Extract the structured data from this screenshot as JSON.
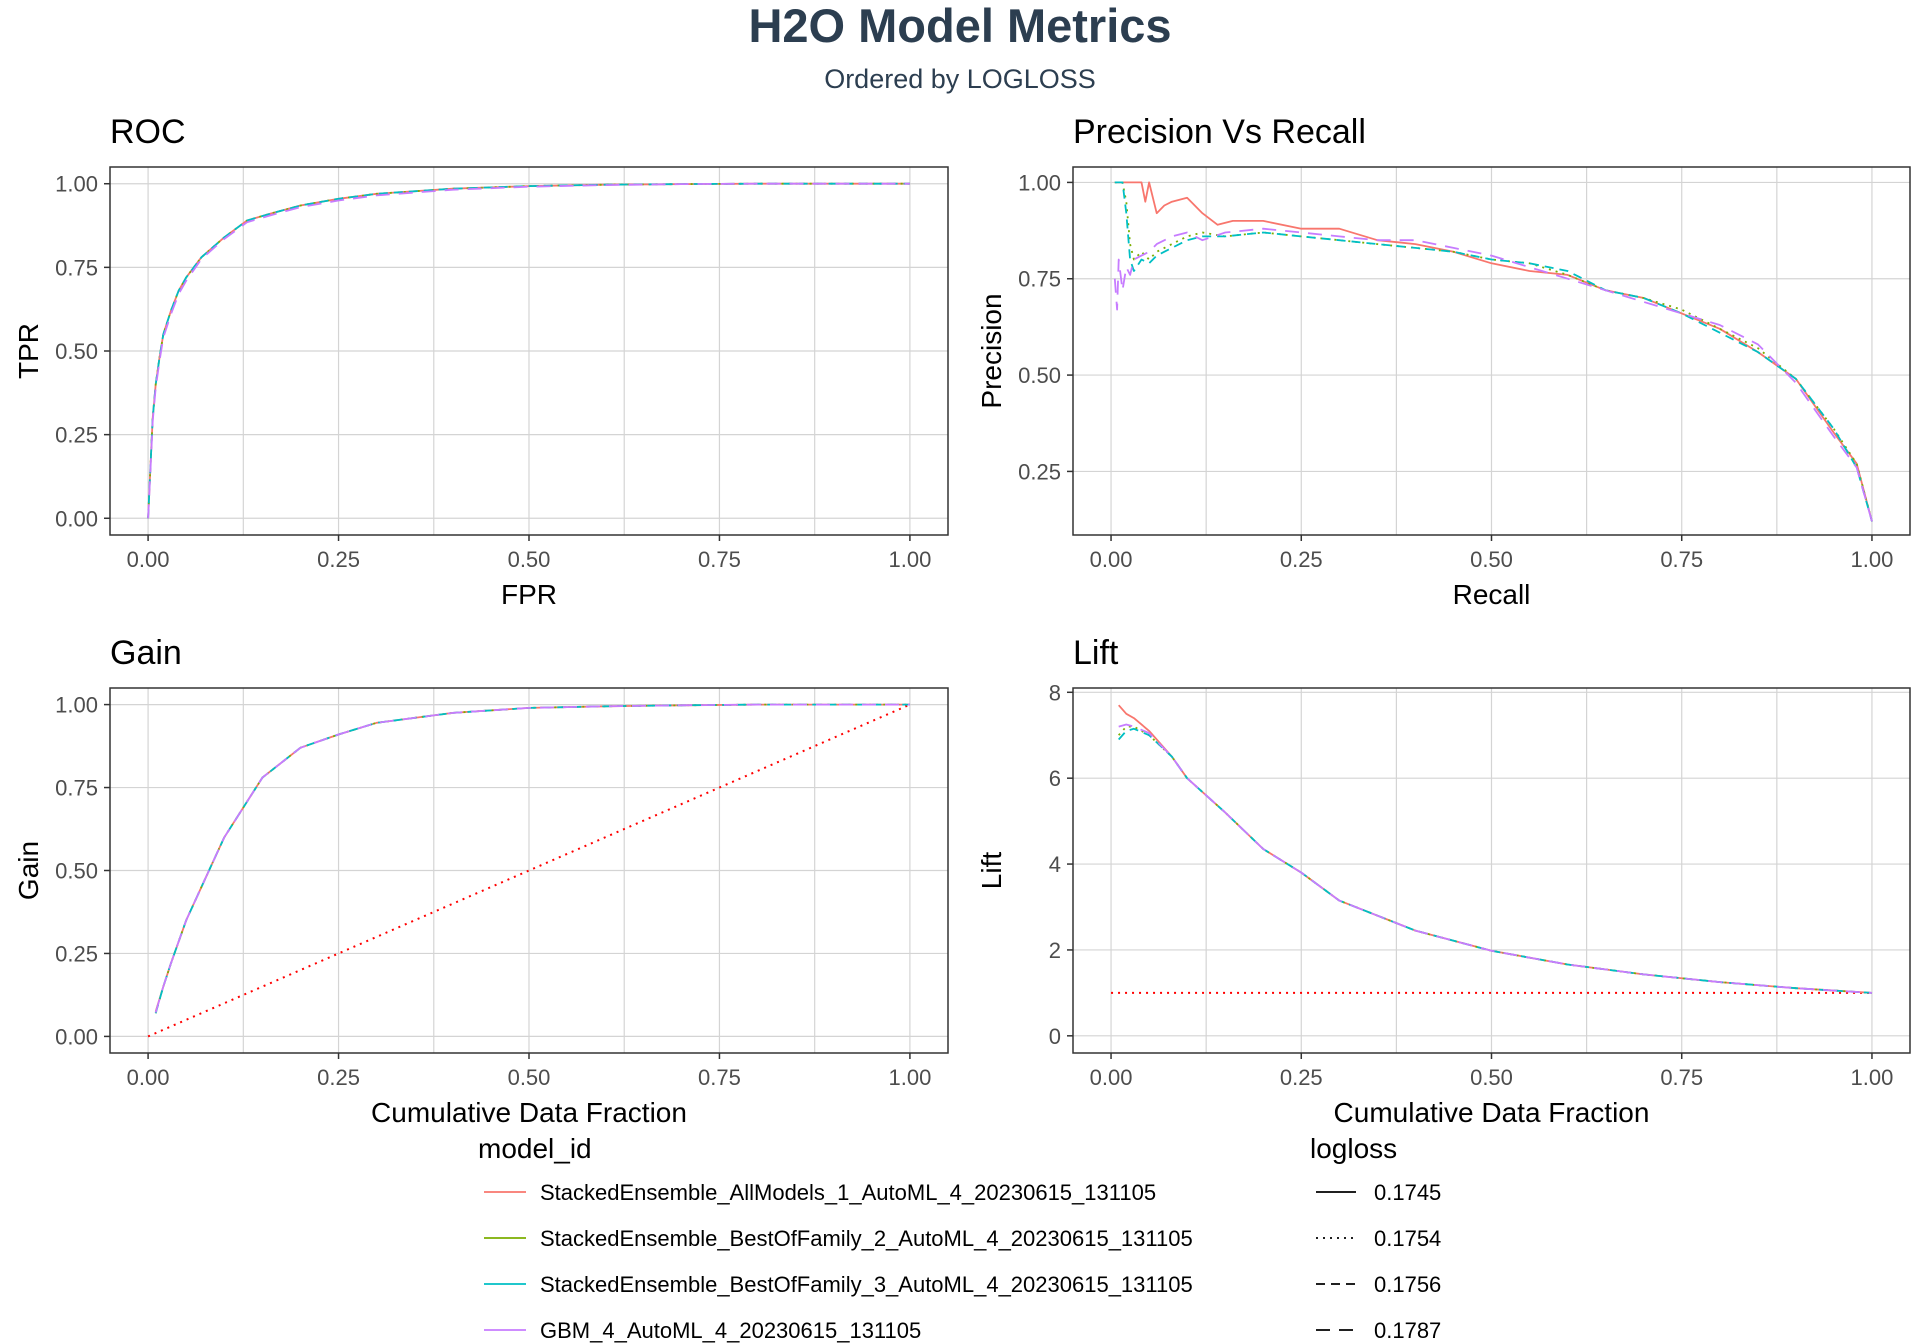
{
  "header": {
    "title": "H2O Model Metrics",
    "subtitle": "Ordered by LOGLOSS"
  },
  "colors": {
    "series": [
      "#F8766D",
      "#7CAE00",
      "#00BFC4",
      "#C77CFF"
    ],
    "reference": "#FF0000",
    "title": "#2c3e50"
  },
  "legend": {
    "model_id_title": "model_id",
    "logloss_title": "logloss",
    "models": [
      "StackedEnsemble_AllModels_1_AutoML_4_20230615_131105",
      "StackedEnsemble_BestOfFamily_2_AutoML_4_20230615_131105",
      "StackedEnsemble_BestOfFamily_3_AutoML_4_20230615_131105",
      "GBM_4_AutoML_4_20230615_131105"
    ],
    "logloss_values": [
      "0.1745",
      "0.1754",
      "0.1756",
      "0.1787"
    ],
    "linetypes": [
      "solid",
      "dotted",
      "dashed",
      "longdash"
    ]
  },
  "chart_data": [
    {
      "id": "roc",
      "type": "line",
      "title": "ROC",
      "xlabel": "FPR",
      "ylabel": "TPR",
      "xlim": [
        -0.05,
        1.05
      ],
      "ylim": [
        -0.05,
        1.05
      ],
      "xticks": [
        "0.00",
        "0.25",
        "0.50",
        "0.75",
        "1.00"
      ],
      "yticks": [
        "0.00",
        "0.25",
        "0.50",
        "0.75",
        "1.00"
      ],
      "grid": true,
      "series": [
        {
          "name": "StackedEnsemble_AllModels_1_AutoML_4_20230615_131105",
          "x": [
            0,
            0.003,
            0.006,
            0.01,
            0.015,
            0.02,
            0.03,
            0.04,
            0.05,
            0.07,
            0.1,
            0.13,
            0.16,
            0.2,
            0.25,
            0.3,
            0.4,
            0.5,
            0.6,
            0.7,
            0.8,
            1.0
          ],
          "y": [
            0,
            0.15,
            0.3,
            0.4,
            0.48,
            0.55,
            0.62,
            0.68,
            0.72,
            0.78,
            0.84,
            0.89,
            0.91,
            0.935,
            0.955,
            0.97,
            0.985,
            0.993,
            0.997,
            0.999,
            1.0,
            1.0
          ]
        },
        {
          "name": "StackedEnsemble_BestOfFamily_2_AutoML_4_20230615_131105",
          "x": [
            0,
            0.003,
            0.006,
            0.01,
            0.015,
            0.02,
            0.03,
            0.04,
            0.05,
            0.07,
            0.1,
            0.13,
            0.16,
            0.2,
            0.25,
            0.3,
            0.4,
            0.5,
            0.6,
            0.7,
            0.8,
            1.0
          ],
          "y": [
            0,
            0.15,
            0.3,
            0.4,
            0.48,
            0.55,
            0.62,
            0.68,
            0.72,
            0.78,
            0.84,
            0.89,
            0.91,
            0.935,
            0.955,
            0.97,
            0.985,
            0.993,
            0.997,
            0.999,
            1.0,
            1.0
          ]
        },
        {
          "name": "StackedEnsemble_BestOfFamily_3_AutoML_4_20230615_131105",
          "x": [
            0,
            0.003,
            0.006,
            0.01,
            0.015,
            0.02,
            0.03,
            0.04,
            0.05,
            0.07,
            0.1,
            0.13,
            0.16,
            0.2,
            0.25,
            0.3,
            0.4,
            0.5,
            0.6,
            0.7,
            0.8,
            1.0
          ],
          "y": [
            0,
            0.15,
            0.3,
            0.4,
            0.48,
            0.55,
            0.62,
            0.68,
            0.72,
            0.78,
            0.84,
            0.89,
            0.91,
            0.935,
            0.955,
            0.97,
            0.985,
            0.993,
            0.997,
            0.999,
            1.0,
            1.0
          ]
        },
        {
          "name": "GBM_4_AutoML_4_20230615_131105",
          "x": [
            0,
            0.003,
            0.006,
            0.01,
            0.015,
            0.02,
            0.03,
            0.04,
            0.05,
            0.07,
            0.1,
            0.13,
            0.16,
            0.2,
            0.25,
            0.3,
            0.4,
            0.5,
            0.6,
            0.7,
            0.8,
            1.0
          ],
          "y": [
            0,
            0.14,
            0.29,
            0.39,
            0.47,
            0.54,
            0.61,
            0.67,
            0.71,
            0.775,
            0.835,
            0.885,
            0.905,
            0.93,
            0.95,
            0.965,
            0.982,
            0.991,
            0.996,
            0.999,
            1.0,
            1.0
          ]
        }
      ]
    },
    {
      "id": "pr",
      "type": "line",
      "title": "Precision Vs Recall",
      "xlabel": "Recall",
      "ylabel": "Precision",
      "xlim": [
        -0.05,
        1.05
      ],
      "ylim": [
        0.085,
        1.04
      ],
      "xticks": [
        "0.00",
        "0.25",
        "0.50",
        "0.75",
        "1.00"
      ],
      "yticks": [
        "0.25",
        "0.50",
        "0.75",
        "1.00"
      ],
      "yticks_values": [
        0.25,
        0.5,
        0.75,
        1.0
      ],
      "grid": true,
      "series": [
        {
          "name": "StackedEnsemble_AllModels_1_AutoML_4_20230615_131105",
          "x": [
            0.005,
            0.01,
            0.02,
            0.03,
            0.04,
            0.045,
            0.05,
            0.06,
            0.07,
            0.08,
            0.1,
            0.12,
            0.14,
            0.16,
            0.2,
            0.25,
            0.3,
            0.35,
            0.4,
            0.45,
            0.5,
            0.55,
            0.6,
            0.65,
            0.7,
            0.75,
            0.8,
            0.85,
            0.9,
            0.95,
            0.98,
            1.0
          ],
          "y": [
            1.0,
            1.0,
            1.0,
            1.0,
            1.0,
            0.95,
            1.0,
            0.92,
            0.94,
            0.95,
            0.96,
            0.92,
            0.89,
            0.9,
            0.9,
            0.88,
            0.88,
            0.85,
            0.84,
            0.82,
            0.79,
            0.77,
            0.76,
            0.72,
            0.7,
            0.66,
            0.62,
            0.56,
            0.49,
            0.35,
            0.27,
            0.12
          ]
        },
        {
          "name": "StackedEnsemble_BestOfFamily_2_AutoML_4_20230615_131105",
          "x": [
            0.005,
            0.01,
            0.015,
            0.02,
            0.025,
            0.03,
            0.04,
            0.05,
            0.06,
            0.08,
            0.1,
            0.12,
            0.15,
            0.2,
            0.25,
            0.3,
            0.35,
            0.4,
            0.45,
            0.5,
            0.55,
            0.6,
            0.65,
            0.7,
            0.75,
            0.8,
            0.85,
            0.9,
            0.95,
            0.98,
            1.0
          ],
          "y": [
            1.0,
            1.0,
            1.0,
            0.95,
            0.84,
            0.8,
            0.82,
            0.8,
            0.82,
            0.84,
            0.86,
            0.87,
            0.86,
            0.87,
            0.86,
            0.85,
            0.84,
            0.83,
            0.82,
            0.8,
            0.79,
            0.76,
            0.72,
            0.7,
            0.67,
            0.62,
            0.57,
            0.49,
            0.36,
            0.27,
            0.12
          ]
        },
        {
          "name": "StackedEnsemble_BestOfFamily_3_AutoML_4_20230615_131105",
          "x": [
            0.005,
            0.01,
            0.015,
            0.02,
            0.025,
            0.03,
            0.04,
            0.05,
            0.06,
            0.08,
            0.1,
            0.12,
            0.15,
            0.2,
            0.25,
            0.3,
            0.35,
            0.4,
            0.45,
            0.5,
            0.55,
            0.6,
            0.65,
            0.7,
            0.75,
            0.8,
            0.85,
            0.9,
            0.95,
            0.98,
            1.0
          ],
          "y": [
            1.0,
            1.0,
            1.0,
            0.92,
            0.8,
            0.77,
            0.8,
            0.79,
            0.81,
            0.83,
            0.85,
            0.86,
            0.86,
            0.87,
            0.86,
            0.85,
            0.84,
            0.83,
            0.82,
            0.8,
            0.79,
            0.77,
            0.72,
            0.7,
            0.66,
            0.61,
            0.56,
            0.49,
            0.36,
            0.26,
            0.12
          ]
        },
        {
          "name": "GBM_4_AutoML_4_20230615_131105",
          "x": [
            0.005,
            0.008,
            0.01,
            0.015,
            0.02,
            0.025,
            0.03,
            0.04,
            0.05,
            0.06,
            0.08,
            0.1,
            0.12,
            0.15,
            0.2,
            0.25,
            0.3,
            0.35,
            0.4,
            0.45,
            0.5,
            0.55,
            0.6,
            0.65,
            0.7,
            0.75,
            0.8,
            0.85,
            0.9,
            0.95,
            0.98,
            1.0
          ],
          "y": [
            0.75,
            0.67,
            0.8,
            0.72,
            0.78,
            0.76,
            0.8,
            0.81,
            0.82,
            0.84,
            0.86,
            0.87,
            0.85,
            0.87,
            0.88,
            0.87,
            0.86,
            0.85,
            0.85,
            0.83,
            0.81,
            0.78,
            0.75,
            0.72,
            0.69,
            0.66,
            0.63,
            0.58,
            0.48,
            0.34,
            0.26,
            0.12
          ]
        }
      ]
    },
    {
      "id": "gain",
      "type": "line",
      "title": "Gain",
      "xlabel": "Cumulative Data Fraction",
      "ylabel": "Gain",
      "xlim": [
        -0.05,
        1.05
      ],
      "ylim": [
        -0.05,
        1.05
      ],
      "xticks": [
        "0.00",
        "0.25",
        "0.50",
        "0.75",
        "1.00"
      ],
      "yticks": [
        "0.00",
        "0.25",
        "0.50",
        "0.75",
        "1.00"
      ],
      "grid": true,
      "reference": {
        "x": [
          0,
          1
        ],
        "y": [
          0,
          1
        ]
      },
      "series": [
        {
          "name": "StackedEnsemble_AllModels_1_AutoML_4_20230615_131105",
          "x": [
            0.01,
            0.02,
            0.03,
            0.05,
            0.08,
            0.1,
            0.15,
            0.2,
            0.25,
            0.3,
            0.4,
            0.5,
            0.6,
            0.7,
            0.8,
            0.9,
            1.0
          ],
          "y": [
            0.075,
            0.15,
            0.22,
            0.35,
            0.5,
            0.6,
            0.78,
            0.87,
            0.91,
            0.945,
            0.975,
            0.99,
            0.995,
            0.998,
            1.0,
            1.0,
            1.0
          ]
        },
        {
          "name": "StackedEnsemble_BestOfFamily_2_AutoML_4_20230615_131105",
          "x": [
            0.01,
            0.02,
            0.03,
            0.05,
            0.08,
            0.1,
            0.15,
            0.2,
            0.25,
            0.3,
            0.4,
            0.5,
            0.6,
            0.7,
            0.8,
            0.9,
            1.0
          ],
          "y": [
            0.07,
            0.15,
            0.22,
            0.35,
            0.5,
            0.6,
            0.78,
            0.87,
            0.91,
            0.945,
            0.975,
            0.99,
            0.995,
            0.998,
            1.0,
            1.0,
            1.0
          ]
        },
        {
          "name": "StackedEnsemble_BestOfFamily_3_AutoML_4_20230615_131105",
          "x": [
            0.01,
            0.02,
            0.03,
            0.05,
            0.08,
            0.1,
            0.15,
            0.2,
            0.25,
            0.3,
            0.4,
            0.5,
            0.6,
            0.7,
            0.8,
            0.9,
            1.0
          ],
          "y": [
            0.07,
            0.15,
            0.22,
            0.35,
            0.5,
            0.6,
            0.78,
            0.87,
            0.91,
            0.945,
            0.975,
            0.99,
            0.995,
            0.998,
            1.0,
            1.0,
            1.0
          ]
        },
        {
          "name": "GBM_4_AutoML_4_20230615_131105",
          "x": [
            0.01,
            0.02,
            0.03,
            0.05,
            0.08,
            0.1,
            0.15,
            0.2,
            0.25,
            0.3,
            0.4,
            0.5,
            0.6,
            0.7,
            0.8,
            0.9,
            1.0
          ],
          "y": [
            0.072,
            0.15,
            0.22,
            0.35,
            0.5,
            0.6,
            0.78,
            0.87,
            0.91,
            0.945,
            0.975,
            0.99,
            0.995,
            0.998,
            1.0,
            1.0,
            1.0
          ]
        }
      ]
    },
    {
      "id": "lift",
      "type": "line",
      "title": "Lift",
      "xlabel": "Cumulative Data Fraction",
      "ylabel": "Lift",
      "xlim": [
        -0.05,
        1.05
      ],
      "ylim": [
        -0.4,
        8.1
      ],
      "xticks": [
        "0.00",
        "0.25",
        "0.50",
        "0.75",
        "1.00"
      ],
      "yticks": [
        "0",
        "2",
        "4",
        "6",
        "8"
      ],
      "yticks_values": [
        0,
        2,
        4,
        6,
        8
      ],
      "grid": true,
      "reference": {
        "x": [
          0,
          1
        ],
        "y": [
          1,
          1
        ]
      },
      "series": [
        {
          "name": "StackedEnsemble_AllModels_1_AutoML_4_20230615_131105",
          "x": [
            0.01,
            0.02,
            0.03,
            0.05,
            0.08,
            0.1,
            0.15,
            0.2,
            0.25,
            0.3,
            0.4,
            0.5,
            0.6,
            0.7,
            0.8,
            0.9,
            1.0
          ],
          "y": [
            7.7,
            7.5,
            7.4,
            7.1,
            6.5,
            6.0,
            5.2,
            4.35,
            3.8,
            3.15,
            2.45,
            1.98,
            1.66,
            1.43,
            1.25,
            1.11,
            1.0
          ]
        },
        {
          "name": "StackedEnsemble_BestOfFamily_2_AutoML_4_20230615_131105",
          "x": [
            0.01,
            0.02,
            0.03,
            0.05,
            0.08,
            0.1,
            0.15,
            0.2,
            0.25,
            0.3,
            0.4,
            0.5,
            0.6,
            0.7,
            0.8,
            0.9,
            1.0
          ],
          "y": [
            7.0,
            7.2,
            7.2,
            7.0,
            6.5,
            6.0,
            5.2,
            4.35,
            3.8,
            3.15,
            2.45,
            1.98,
            1.66,
            1.43,
            1.25,
            1.11,
            1.0
          ]
        },
        {
          "name": "StackedEnsemble_BestOfFamily_3_AutoML_4_20230615_131105",
          "x": [
            0.01,
            0.02,
            0.03,
            0.05,
            0.08,
            0.1,
            0.15,
            0.2,
            0.25,
            0.3,
            0.4,
            0.5,
            0.6,
            0.7,
            0.8,
            0.9,
            1.0
          ],
          "y": [
            6.9,
            7.1,
            7.15,
            7.0,
            6.5,
            6.0,
            5.2,
            4.35,
            3.8,
            3.15,
            2.45,
            1.98,
            1.66,
            1.43,
            1.25,
            1.11,
            1.0
          ]
        },
        {
          "name": "GBM_4_AutoML_4_20230615_131105",
          "x": [
            0.01,
            0.02,
            0.03,
            0.05,
            0.08,
            0.1,
            0.15,
            0.2,
            0.25,
            0.3,
            0.4,
            0.5,
            0.6,
            0.7,
            0.8,
            0.9,
            1.0
          ],
          "y": [
            7.2,
            7.25,
            7.2,
            7.05,
            6.5,
            6.0,
            5.2,
            4.35,
            3.8,
            3.15,
            2.45,
            1.98,
            1.66,
            1.43,
            1.25,
            1.11,
            1.0
          ]
        }
      ]
    }
  ]
}
